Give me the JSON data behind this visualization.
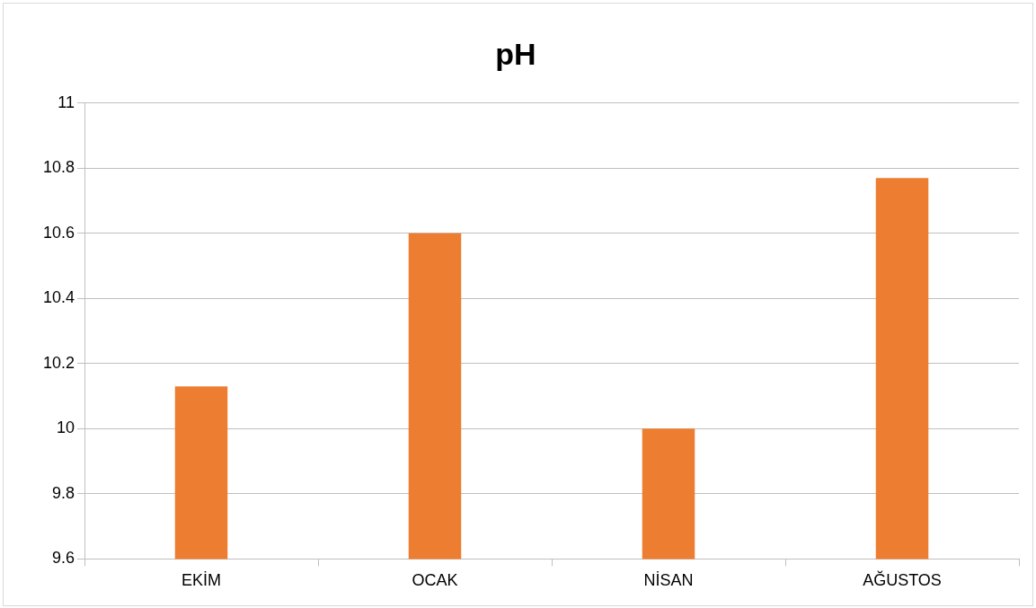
{
  "chart_data": {
    "type": "bar",
    "title": "pH",
    "categories": [
      "EKİM",
      "OCAK",
      "NİSAN",
      "AĞUSTOS"
    ],
    "values": [
      10.13,
      10.6,
      10.0,
      10.77
    ],
    "color": "#ed7d31",
    "ylim": [
      9.6,
      11
    ],
    "yticks": [
      9.6,
      9.8,
      10,
      10.2,
      10.4,
      10.6,
      10.8,
      11
    ],
    "grid": "y",
    "legend": false
  }
}
